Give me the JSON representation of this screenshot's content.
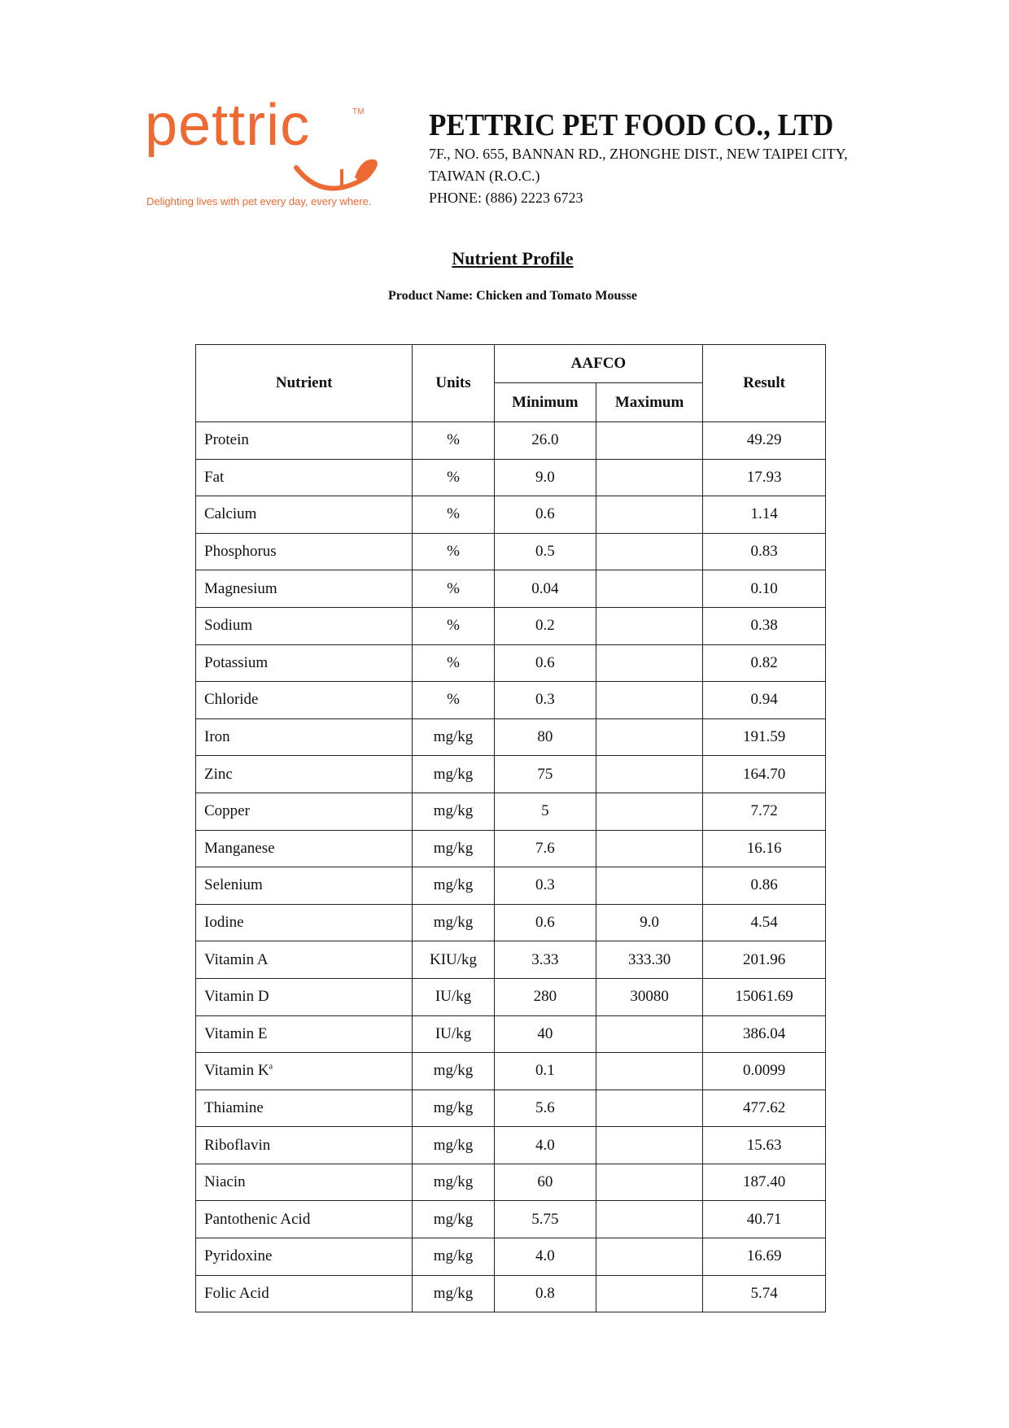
{
  "logo": {
    "word": "pettric",
    "tm": "TM",
    "tagline": "Delighting lives with pet every day, every where.",
    "color": "#ee6a32"
  },
  "company": {
    "name": "PETTRIC PET FOOD CO., LTD",
    "address_line1": "7F., NO. 655, BANNAN RD., ZHONGHE DIST., NEW TAIPEI CITY,",
    "address_line2": "TAIWAN (R.O.C.)",
    "phone": "PHONE: (886) 2223 6723"
  },
  "title": "Nutrient Profile",
  "product_name": "Product Name: Chicken and Tomato Mousse",
  "table": {
    "headers": {
      "nutrient": "Nutrient",
      "units": "Units",
      "aafco": "AAFCO",
      "minimum": "Minimum",
      "maximum": "Maximum",
      "result": "Result"
    },
    "rows": [
      {
        "nutrient": "Protein",
        "sup": "",
        "units": "%",
        "min": "26.0",
        "max": "",
        "result": "49.29"
      },
      {
        "nutrient": "Fat",
        "sup": "",
        "units": "%",
        "min": "9.0",
        "max": "",
        "result": "17.93"
      },
      {
        "nutrient": "Calcium",
        "sup": "",
        "units": "%",
        "min": "0.6",
        "max": "",
        "result": "1.14"
      },
      {
        "nutrient": "Phosphorus",
        "sup": "",
        "units": "%",
        "min": "0.5",
        "max": "",
        "result": "0.83"
      },
      {
        "nutrient": "Magnesium",
        "sup": "",
        "units": "%",
        "min": "0.04",
        "max": "",
        "result": "0.10"
      },
      {
        "nutrient": "Sodium",
        "sup": "",
        "units": "%",
        "min": "0.2",
        "max": "",
        "result": "0.38"
      },
      {
        "nutrient": "Potassium",
        "sup": "",
        "units": "%",
        "min": "0.6",
        "max": "",
        "result": "0.82"
      },
      {
        "nutrient": "Chloride",
        "sup": "",
        "units": "%",
        "min": "0.3",
        "max": "",
        "result": "0.94"
      },
      {
        "nutrient": "Iron",
        "sup": "",
        "units": "mg/kg",
        "min": "80",
        "max": "",
        "result": "191.59"
      },
      {
        "nutrient": "Zinc",
        "sup": "",
        "units": "mg/kg",
        "min": "75",
        "max": "",
        "result": "164.70"
      },
      {
        "nutrient": "Copper",
        "sup": "",
        "units": "mg/kg",
        "min": "5",
        "max": "",
        "result": "7.72"
      },
      {
        "nutrient": "Manganese",
        "sup": "",
        "units": "mg/kg",
        "min": "7.6",
        "max": "",
        "result": "16.16"
      },
      {
        "nutrient": "Selenium",
        "sup": "",
        "units": "mg/kg",
        "min": "0.3",
        "max": "",
        "result": "0.86"
      },
      {
        "nutrient": "Iodine",
        "sup": "",
        "units": "mg/kg",
        "min": "0.6",
        "max": "9.0",
        "result": "4.54"
      },
      {
        "nutrient": "Vitamin A",
        "sup": "",
        "units": "KIU/kg",
        "min": "3.33",
        "max": "333.30",
        "result": "201.96"
      },
      {
        "nutrient": "Vitamin D",
        "sup": "",
        "units": "IU/kg",
        "min": "280",
        "max": "30080",
        "result": "15061.69"
      },
      {
        "nutrient": "Vitamin E",
        "sup": "",
        "units": "IU/kg",
        "min": "40",
        "max": "",
        "result": "386.04"
      },
      {
        "nutrient": "Vitamin K",
        "sup": "a",
        "units": "mg/kg",
        "min": "0.1",
        "max": "",
        "result": "0.0099"
      },
      {
        "nutrient": "Thiamine",
        "sup": "",
        "units": "mg/kg",
        "min": "5.6",
        "max": "",
        "result": "477.62"
      },
      {
        "nutrient": "Riboflavin",
        "sup": "",
        "units": "mg/kg",
        "min": "4.0",
        "max": "",
        "result": "15.63"
      },
      {
        "nutrient": "Niacin",
        "sup": "",
        "units": "mg/kg",
        "min": "60",
        "max": "",
        "result": "187.40"
      },
      {
        "nutrient": "Pantothenic Acid",
        "sup": "",
        "units": "mg/kg",
        "min": "5.75",
        "max": "",
        "result": "40.71"
      },
      {
        "nutrient": "Pyridoxine",
        "sup": "",
        "units": "mg/kg",
        "min": "4.0",
        "max": "",
        "result": "16.69"
      },
      {
        "nutrient": "Folic Acid",
        "sup": "",
        "units": "mg/kg",
        "min": "0.8",
        "max": "",
        "result": "5.74"
      }
    ]
  }
}
